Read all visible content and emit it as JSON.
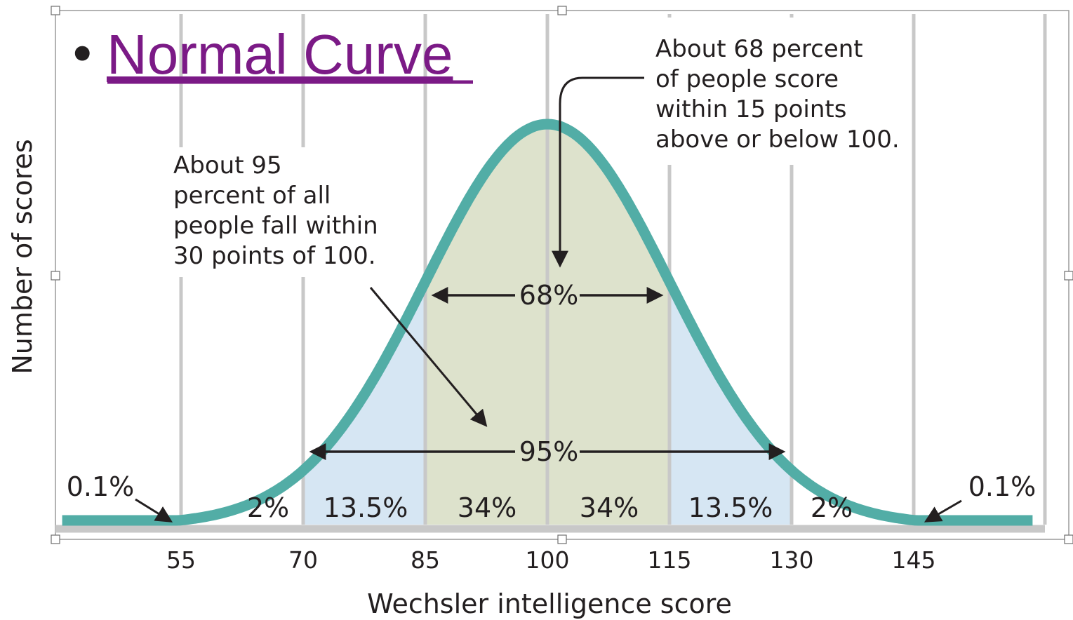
{
  "slide": {
    "bullet": "•",
    "title": "Normal Curve"
  },
  "chart_data": {
    "type": "area",
    "distribution": "normal",
    "mean": 100,
    "sd": 15,
    "xlabel": "Wechsler intelligence score",
    "ylabel": "Number of scores",
    "x_ticks": [
      55,
      70,
      85,
      100,
      115,
      130,
      145
    ],
    "x_tick_labels": [
      "55",
      "70",
      "85",
      "100",
      "115",
      "130",
      "145"
    ],
    "xlim": [
      40,
      160
    ],
    "grid": "vertical",
    "colors": {
      "curve": "#52ada6",
      "band_68": "#dde2cc",
      "band_95": "#d6e6f3",
      "gridline": "#c8c8c8",
      "baseline": "#c8c8c8",
      "text": "#231f20",
      "title_link": "#7b1a86"
    },
    "segments": [
      {
        "from": 40,
        "to": 55,
        "label": "0.1%"
      },
      {
        "from": 55,
        "to": 70,
        "label": "2%"
      },
      {
        "from": 70,
        "to": 85,
        "label": "13.5%"
      },
      {
        "from": 85,
        "to": 100,
        "label": "34%"
      },
      {
        "from": 100,
        "to": 115,
        "label": "34%"
      },
      {
        "from": 115,
        "to": 130,
        "label": "13.5%"
      },
      {
        "from": 130,
        "to": 145,
        "label": "2%"
      },
      {
        "from": 145,
        "to": 160,
        "label": "0.1%"
      }
    ],
    "spans": [
      {
        "from": 85,
        "to": 115,
        "label": "68%"
      },
      {
        "from": 70,
        "to": 130,
        "label": "95%"
      }
    ],
    "annotations": [
      {
        "id": "note_68",
        "lines": [
          "About 68 percent",
          "of people score",
          "within 15 points",
          "above or below 100."
        ]
      },
      {
        "id": "note_95",
        "lines": [
          "About 95",
          "percent of all",
          "people fall within",
          "30 points of 100."
        ]
      }
    ]
  }
}
